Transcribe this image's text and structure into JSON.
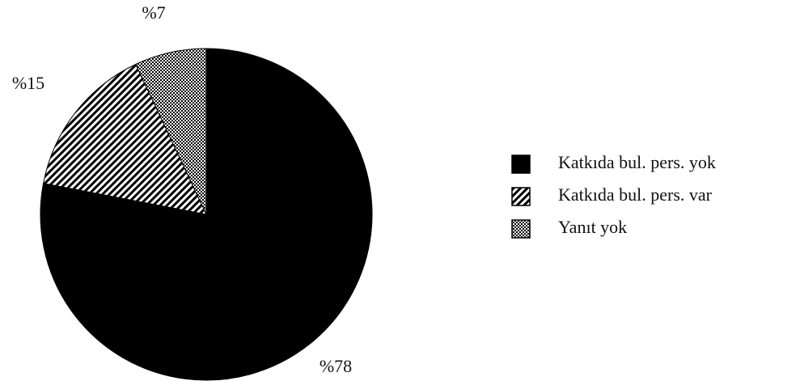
{
  "chart_data": {
    "type": "pie",
    "categories": [
      "Katkıda bul. pers. yok",
      "Katkıda bul. pers. var",
      "Yanıt yok"
    ],
    "values": [
      78,
      15,
      7
    ],
    "value_labels": [
      "%78",
      "%15",
      "%7"
    ],
    "fills": [
      "solid",
      "hatch",
      "dots"
    ],
    "color": "#000000",
    "legend": "right"
  }
}
